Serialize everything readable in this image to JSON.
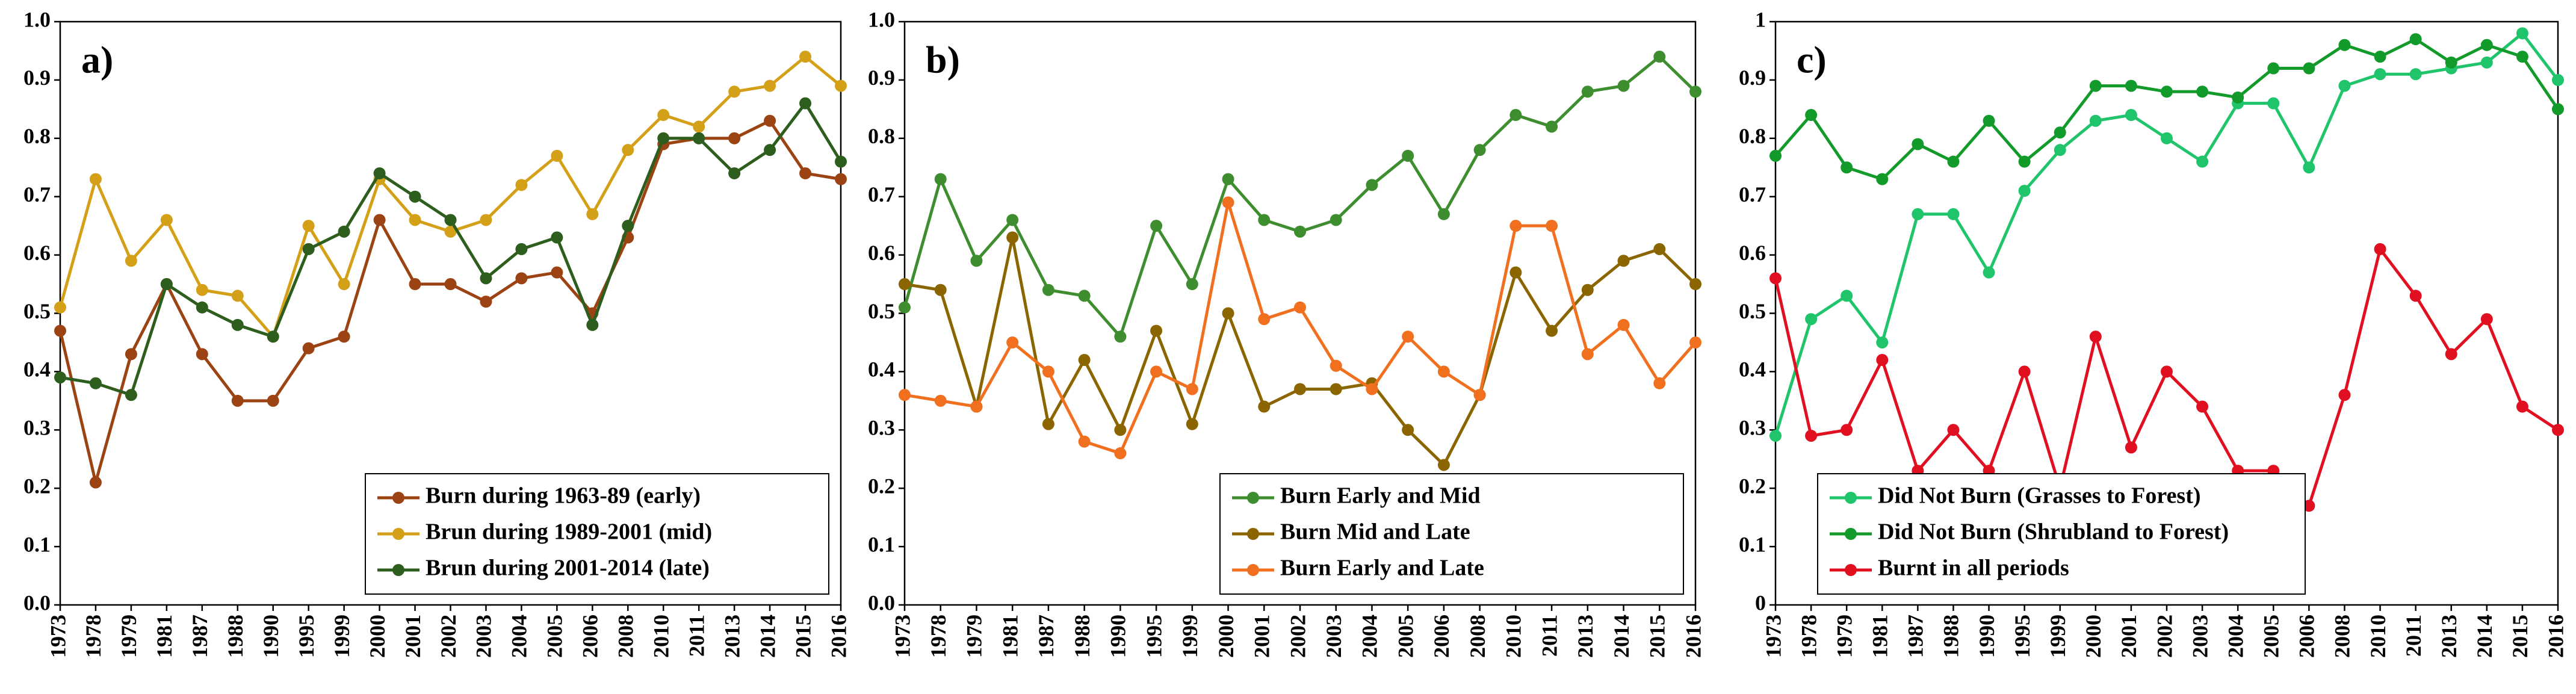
{
  "chart_data": [
    {
      "type": "line",
      "annotation": "a)",
      "legend": "lower right",
      "categories": [
        "1973",
        "1978",
        "1979",
        "1981",
        "1987",
        "1988",
        "1990",
        "1995",
        "1999",
        "2000",
        "2001",
        "2002",
        "2003",
        "2004",
        "2005",
        "2006",
        "2008",
        "2010",
        "2011",
        "2013",
        "2014",
        "2015",
        "2016"
      ],
      "ylim": [
        0,
        1
      ],
      "yticks": [
        {
          "value": 0,
          "label": "0.0"
        },
        0.1,
        0.2,
        0.3,
        0.4,
        0.5,
        0.6,
        0.7,
        0.8,
        0.9,
        {
          "value": 1,
          "label": "1.0"
        }
      ],
      "series": [
        {
          "name": "Burn during 1963-89 (early)",
          "color": "#9c4313",
          "values": [
            0.47,
            0.21,
            0.43,
            0.55,
            0.43,
            0.35,
            0.35,
            0.44,
            0.46,
            0.66,
            0.55,
            0.55,
            0.52,
            0.56,
            0.57,
            0.5,
            0.63,
            0.79,
            0.8,
            0.8,
            0.83,
            0.74,
            0.73
          ]
        },
        {
          "name": "Brun during 1989-2001 (mid)",
          "color": "#d4a017",
          "values": [
            0.51,
            0.73,
            0.59,
            0.66,
            0.54,
            0.53,
            0.46,
            0.65,
            0.55,
            0.73,
            0.66,
            0.64,
            0.66,
            0.72,
            0.77,
            0.67,
            0.78,
            0.84,
            0.82,
            0.88,
            0.89,
            0.94,
            0.89
          ]
        },
        {
          "name": "Brun during 2001-2014 (late)",
          "color": "#2d5e1e",
          "values": [
            0.39,
            0.38,
            0.36,
            0.55,
            0.51,
            0.48,
            0.46,
            0.61,
            0.64,
            0.74,
            0.7,
            0.66,
            0.56,
            0.61,
            0.63,
            0.48,
            0.65,
            0.8,
            0.8,
            0.74,
            0.78,
            0.86,
            0.76
          ]
        }
      ]
    },
    {
      "type": "line",
      "annotation": "b)",
      "legend": "lower right",
      "categories": [
        "1973",
        "1978",
        "1979",
        "1981",
        "1987",
        "1988",
        "1990",
        "1995",
        "1999",
        "2000",
        "2001",
        "2002",
        "2003",
        "2004",
        "2005",
        "2006",
        "2008",
        "2010",
        "2011",
        "2013",
        "2014",
        "2015",
        "2016"
      ],
      "ylim": [
        0,
        1
      ],
      "yticks": [
        {
          "value": 0,
          "label": "0.0"
        },
        0.1,
        0.2,
        0.3,
        0.4,
        0.5,
        0.6,
        0.7,
        0.8,
        0.9,
        {
          "value": 1,
          "label": "1.0"
        }
      ],
      "series": [
        {
          "name": "Burn Early and Mid",
          "color": "#3e8e2f",
          "values": [
            0.51,
            0.73,
            0.59,
            0.66,
            0.54,
            0.53,
            0.46,
            0.65,
            0.55,
            0.73,
            0.66,
            0.64,
            0.66,
            0.72,
            0.77,
            0.67,
            0.78,
            0.84,
            0.82,
            0.88,
            0.89,
            0.94,
            0.88
          ]
        },
        {
          "name": "Burn Mid and Late",
          "color": "#8a6500",
          "values": [
            0.55,
            0.54,
            0.34,
            0.63,
            0.31,
            0.42,
            0.3,
            0.47,
            0.31,
            0.5,
            0.34,
            0.37,
            0.37,
            0.38,
            0.3,
            0.24,
            0.36,
            0.57,
            0.47,
            0.54,
            0.59,
            0.61,
            0.55
          ]
        },
        {
          "name": "Burn Early and Late",
          "color": "#f07020",
          "values": [
            0.36,
            0.35,
            0.34,
            0.45,
            0.4,
            0.28,
            0.26,
            0.4,
            0.37,
            0.69,
            0.49,
            0.51,
            0.41,
            0.37,
            0.46,
            0.4,
            0.36,
            0.65,
            0.65,
            0.43,
            0.48,
            0.38,
            0.45
          ]
        }
      ]
    },
    {
      "type": "line",
      "annotation": "c)",
      "legend": "lower left",
      "categories": [
        "1973",
        "1978",
        "1979",
        "1981",
        "1987",
        "1988",
        "1990",
        "1995",
        "1999",
        "2000",
        "2001",
        "2002",
        "2003",
        "2004",
        "2005",
        "2006",
        "2008",
        "2010",
        "2011",
        "2013",
        "2014",
        "2015",
        "2016"
      ],
      "ylim": [
        0,
        1
      ],
      "yticks": [
        0,
        0.1,
        0.2,
        0.3,
        0.4,
        0.5,
        0.6,
        0.7,
        0.8,
        0.9,
        1
      ],
      "series": [
        {
          "name": "Did Not Burn (Grasses to Forest)",
          "color": "#1fc46b",
          "values": [
            0.29,
            0.49,
            0.53,
            0.45,
            0.67,
            0.67,
            0.57,
            0.71,
            0.78,
            0.83,
            0.84,
            0.8,
            0.76,
            0.86,
            0.86,
            0.75,
            0.89,
            0.91,
            0.91,
            0.92,
            0.93,
            0.98,
            0.9
          ]
        },
        {
          "name": "Did Not Burn (Shrubland to Forest)",
          "color": "#129a2a",
          "values": [
            0.77,
            0.84,
            0.75,
            0.73,
            0.79,
            0.76,
            0.83,
            0.76,
            0.81,
            0.89,
            0.89,
            0.88,
            0.88,
            0.87,
            0.92,
            0.92,
            0.96,
            0.94,
            0.97,
            0.93,
            0.96,
            0.94,
            0.85
          ]
        },
        {
          "name": "Burnt in all periods",
          "color": "#e01020",
          "values": [
            0.56,
            0.29,
            0.3,
            0.42,
            0.23,
            0.3,
            0.23,
            0.4,
            0.2,
            0.46,
            0.27,
            0.4,
            0.34,
            0.23,
            0.23,
            0.17,
            0.36,
            0.61,
            0.53,
            0.43,
            0.49,
            0.34,
            0.3
          ]
        }
      ]
    }
  ]
}
